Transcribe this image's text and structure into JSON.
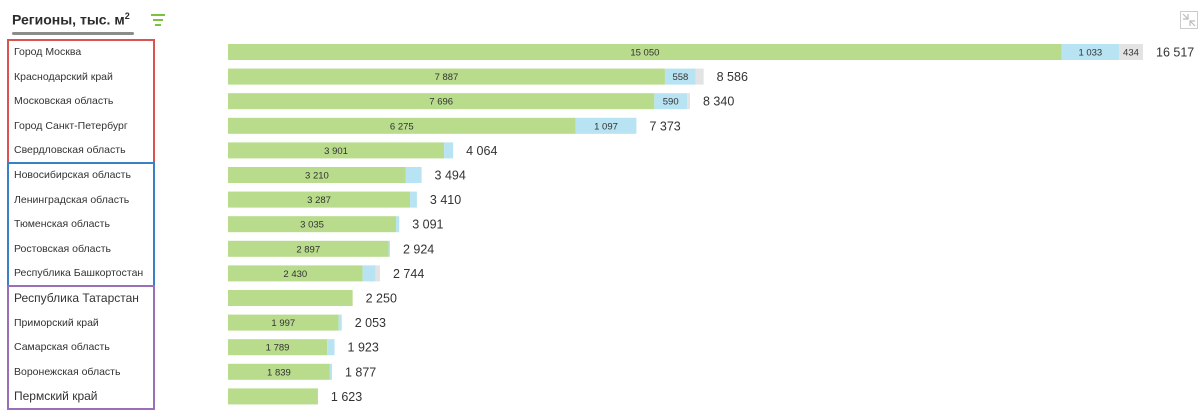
{
  "header": {
    "title": "Регионы, тыс. м",
    "title_sup": "2"
  },
  "icons": {
    "filter": "sort-filter-icon",
    "expand": "collapse-icon"
  },
  "colors": {
    "green": "#b8db8c",
    "blue": "#b7e3f2",
    "gray": "#e3e3e3",
    "group1": "#d9534f",
    "group2": "#3b7fc4",
    "group3": "#9b6fb8"
  },
  "chart_data": {
    "type": "bar",
    "orientation": "horizontal",
    "stacked": true,
    "categories": [
      "Город Москва",
      "Краснодарский край",
      "Московская область",
      "Город Санкт-Петербург",
      "Свердловская область",
      "Новосибирская область",
      "Ленинградская область",
      "Тюменская область",
      "Ростовская область",
      "Республика Башкортостан",
      "Республика Татарстан",
      "Приморский край",
      "Самарская область",
      "Воронежская область",
      "Пермский край"
    ],
    "series": [
      {
        "values": [
          15050,
          7887,
          7696,
          6275,
          3901,
          3210,
          3287,
          3035,
          2897,
          2430,
          2250,
          1997,
          1789,
          1839,
          1623
        ]
      },
      {
        "values": [
          1033,
          558,
          590,
          1097,
          163,
          284,
          123,
          56,
          27,
          231,
          0,
          56,
          134,
          38,
          0
        ]
      },
      {
        "values": [
          434,
          141,
          54,
          1,
          0,
          0,
          0,
          0,
          0,
          83,
          0,
          0,
          0,
          0,
          0
        ]
      }
    ],
    "segment_labels": [
      [
        "15 050",
        "1 033",
        "434"
      ],
      [
        "7 887",
        "558",
        ""
      ],
      [
        "7 696",
        "590",
        ""
      ],
      [
        "6 275",
        "1 097",
        ""
      ],
      [
        "3 901",
        "",
        ""
      ],
      [
        "3 210",
        "",
        ""
      ],
      [
        "3 287",
        "",
        ""
      ],
      [
        "3 035",
        "",
        ""
      ],
      [
        "2 897",
        "",
        ""
      ],
      [
        "2 430",
        "",
        ""
      ],
      [
        "",
        "",
        ""
      ],
      [
        "1 997",
        "",
        ""
      ],
      [
        "1 789",
        "",
        ""
      ],
      [
        "1 839",
        "",
        ""
      ],
      [
        "",
        "",
        ""
      ]
    ],
    "totals": [
      16517,
      8586,
      8340,
      7373,
      4064,
      3494,
      3410,
      3091,
      2924,
      2744,
      2250,
      2053,
      1923,
      1877,
      1623
    ],
    "total_labels": [
      "16 517",
      "8 586",
      "8 340",
      "7 373",
      "4 064",
      "3 494",
      "3 410",
      "3 091",
      "2 924",
      "2 744",
      "2 250",
      "2 053",
      "1 923",
      "1 877",
      "1 623"
    ],
    "xlim": [
      0,
      16517
    ],
    "groups": [
      {
        "start": 0,
        "end": 4
      },
      {
        "start": 5,
        "end": 9
      },
      {
        "start": 10,
        "end": 14
      }
    ]
  }
}
